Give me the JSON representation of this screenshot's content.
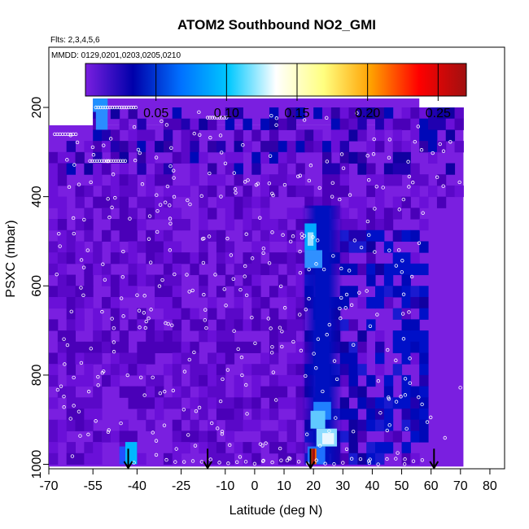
{
  "chart_data": {
    "type": "heatmap",
    "title": "ATOM2 Southbound NO2_GMI",
    "subtitle_flights": "Flts: 2,3,4,5,6",
    "subtitle_dates": "MMDD: 0129,0201,0203,0205,0210",
    "xlabel": "Latitude (deg N)",
    "ylabel": "PSXC (mbar)",
    "xlim": [
      -70,
      85
    ],
    "ylim": [
      1010,
      65
    ],
    "x_ticks": [
      -70,
      -55,
      -40,
      -25,
      -10,
      0,
      10,
      20,
      30,
      40,
      50,
      60,
      70,
      80
    ],
    "x_tick_labels": [
      "-70",
      "-55",
      "-40",
      "-25",
      "-10",
      "0",
      "10",
      "20",
      "30",
      "40",
      "50",
      "60",
      "70",
      "80"
    ],
    "y_ticks": [
      200,
      400,
      600,
      800,
      1000
    ],
    "y_tick_labels": [
      "200",
      "400",
      "600",
      "800",
      "1000"
    ],
    "colorbar": {
      "range": [
        0.0,
        0.27
      ],
      "ticks": [
        0.05,
        0.1,
        0.15,
        0.2,
        0.25
      ],
      "tick_labels": [
        "0.05",
        "0.10",
        "0.15",
        "0.20",
        "0.25"
      ],
      "colors": [
        "#7a1fe0",
        "#0000aa",
        "#0070ff",
        "#00c8ff",
        "#ffffff",
        "#ffff80",
        "#ffa000",
        "#ff0000",
        "#a01010"
      ]
    },
    "flight_arrows_lat": [
      -43,
      -16,
      19,
      61
    ],
    "background_color": "#7a1fe0",
    "enhanced_regions": [
      {
        "lat": [
          -55,
          70
        ],
        "p": [
          180,
          330
        ],
        "value": 0.02
      },
      {
        "lat": [
          15,
          70
        ],
        "p": [
          480,
          1000
        ],
        "value": 0.04
      },
      {
        "lat": [
          17,
          22
        ],
        "p": [
          480,
          560
        ],
        "value": 0.1
      },
      {
        "lat": [
          18,
          25
        ],
        "p": [
          860,
          1000
        ],
        "value": 0.12
      },
      {
        "lat": [
          -44,
          -41
        ],
        "p": [
          950,
          1000
        ],
        "value": 0.08
      },
      {
        "lat": [
          19,
          21
        ],
        "p": [
          970,
          1000
        ],
        "value": 0.26
      }
    ]
  }
}
